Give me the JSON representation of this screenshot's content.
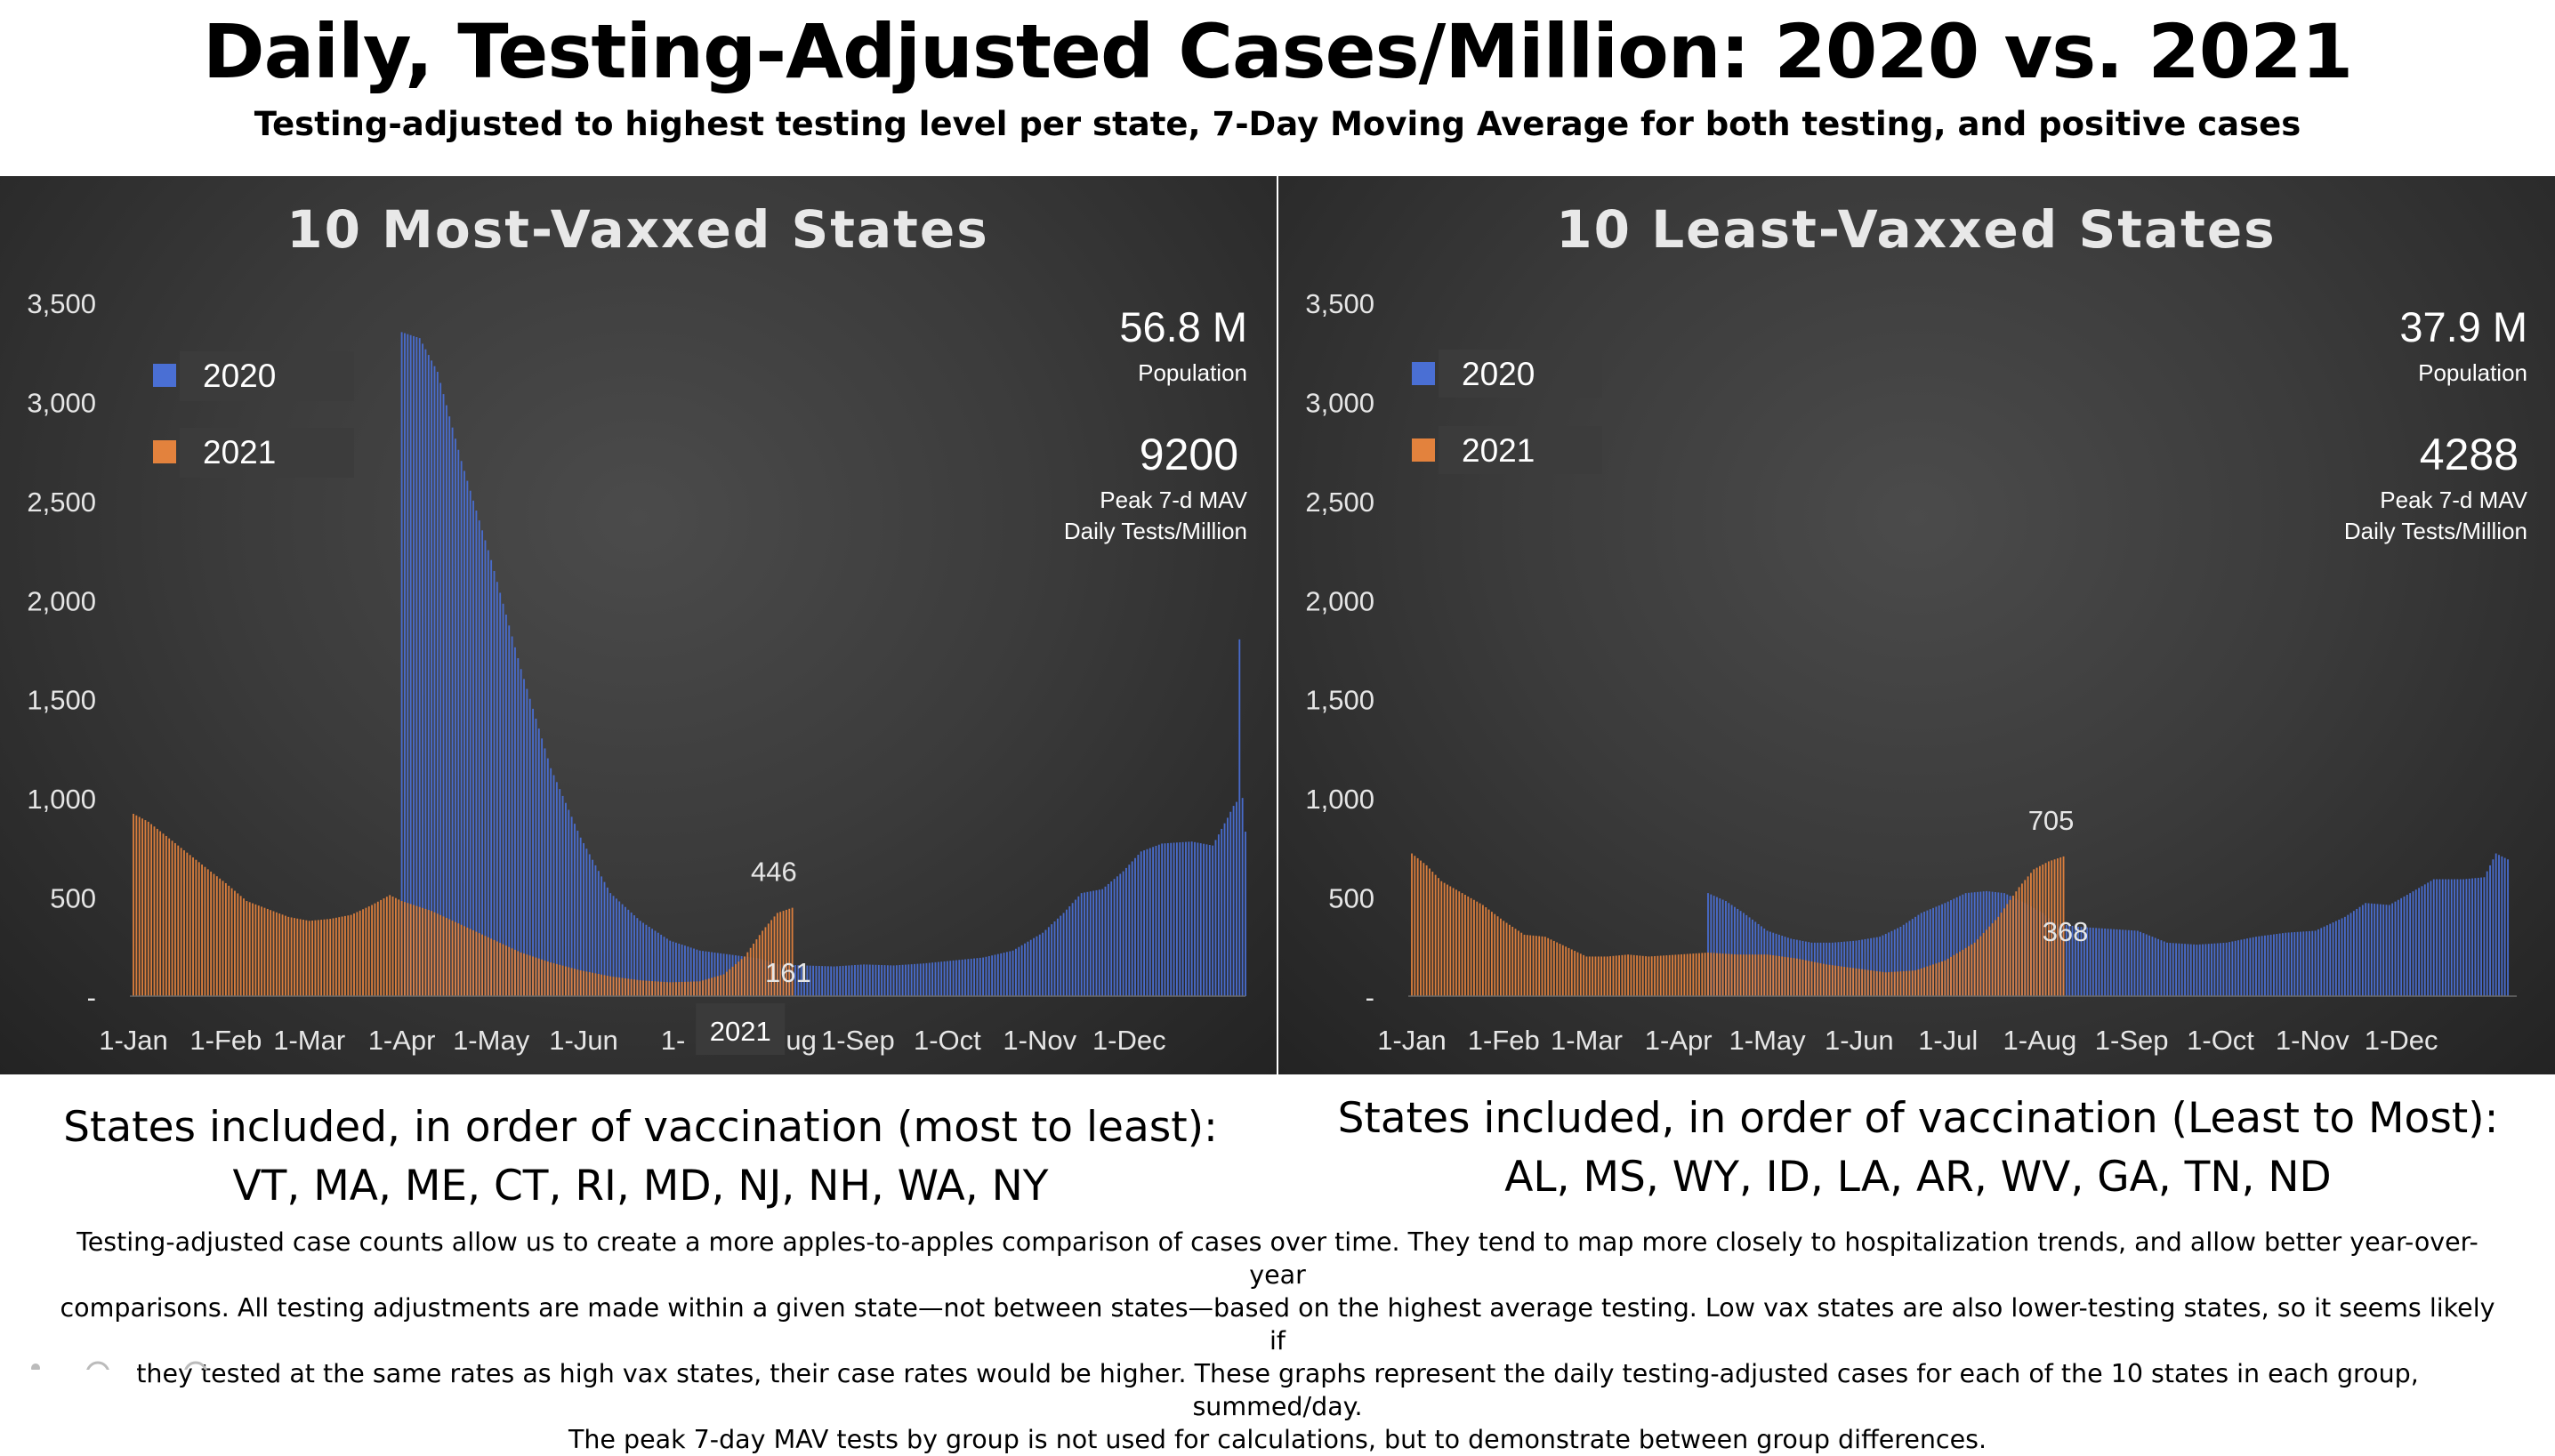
{
  "header": {
    "title": "Daily, Testing-Adjusted Cases/Million: 2020 vs. 2021",
    "subtitle": "Testing-adjusted to highest testing level per state, 7-Day Moving Average for both testing, and positive cases"
  },
  "colors": {
    "series_2020": "#4a6fd4",
    "series_2021": "#e3823d",
    "axis_text": "#e6e6e6"
  },
  "chart_data": [
    {
      "type": "bar",
      "title": "10 Most-Vaxxed States",
      "ylim": [
        0,
        3500
      ],
      "y_ticks": [
        "-",
        "500",
        "1,000",
        "1,500",
        "2,000",
        "2,500",
        "3,000",
        "3,500"
      ],
      "x_ticks": [
        "1-Jan",
        "1-Feb",
        "1-Mar",
        "1-Apr",
        "1-May",
        "1-Jun",
        "1-",
        "ug",
        "1-Sep",
        "1-Oct",
        "1-Nov",
        "1-Dec"
      ],
      "x_tick_days": [
        0,
        31,
        59,
        90,
        120,
        151,
        181,
        224,
        243,
        273,
        304,
        334
      ],
      "legend": [
        {
          "name": "2020",
          "color": "#4a6fd4"
        },
        {
          "name": "2021",
          "color": "#e3823d"
        }
      ],
      "legend_position": "top-left",
      "population_value": "56.8 M",
      "population_label": "Population",
      "peak_value": "9200",
      "peak_label_1": "Peak 7-d MAV",
      "peak_label_2": "Daily Tests/Million",
      "annotations": [
        {
          "text": "446",
          "day": 216,
          "value": 446,
          "series": "2021"
        },
        {
          "text": "161",
          "day": 216,
          "value": 161,
          "series": "2020"
        }
      ],
      "overlay_label": "2021",
      "series": [
        {
          "name": "2020",
          "start_day": 90,
          "end_day": 373,
          "points": [
            [
              90,
              3350
            ],
            [
              96,
              3320
            ],
            [
              102,
              3150
            ],
            [
              110,
              2700
            ],
            [
              120,
              2200
            ],
            [
              130,
              1650
            ],
            [
              140,
              1150
            ],
            [
              150,
              800
            ],
            [
              160,
              520
            ],
            [
              170,
              380
            ],
            [
              180,
              280
            ],
            [
              190,
              230
            ],
            [
              200,
              210
            ],
            [
              210,
              190
            ],
            [
              216,
              161
            ],
            [
              225,
              155
            ],
            [
              235,
              150
            ],
            [
              245,
              160
            ],
            [
              255,
              155
            ],
            [
              265,
              165
            ],
            [
              275,
              180
            ],
            [
              285,
              195
            ],
            [
              295,
              230
            ],
            [
              305,
              320
            ],
            [
              312,
              420
            ],
            [
              318,
              520
            ],
            [
              325,
              540
            ],
            [
              332,
              630
            ],
            [
              338,
              730
            ],
            [
              345,
              770
            ],
            [
              355,
              780
            ],
            [
              362,
              760
            ],
            [
              367,
              900
            ],
            [
              369,
              960
            ],
            [
              370,
              980
            ],
            [
              371,
              1800
            ],
            [
              372,
              1000
            ],
            [
              373,
              830
            ]
          ]
        },
        {
          "name": "2021",
          "start_day": 0,
          "end_day": 221,
          "points": [
            [
              0,
              920
            ],
            [
              5,
              880
            ],
            [
              10,
              820
            ],
            [
              15,
              760
            ],
            [
              20,
              700
            ],
            [
              25,
              640
            ],
            [
              31,
              570
            ],
            [
              38,
              480
            ],
            [
              45,
              440
            ],
            [
              52,
              400
            ],
            [
              59,
              380
            ],
            [
              66,
              390
            ],
            [
              73,
              410
            ],
            [
              80,
              460
            ],
            [
              86,
              510
            ],
            [
              90,
              480
            ],
            [
              100,
              430
            ],
            [
              110,
              360
            ],
            [
              120,
              290
            ],
            [
              130,
              220
            ],
            [
              140,
              170
            ],
            [
              150,
              130
            ],
            [
              160,
              100
            ],
            [
              170,
              80
            ],
            [
              180,
              70
            ],
            [
              190,
              75
            ],
            [
              198,
              110
            ],
            [
              205,
              200
            ],
            [
              211,
              330
            ],
            [
              216,
              420
            ],
            [
              221,
              446
            ]
          ]
        }
      ]
    },
    {
      "type": "bar",
      "title": "10 Least-Vaxxed States",
      "ylim": [
        0,
        3500
      ],
      "y_ticks": [
        "-",
        "500",
        "1,000",
        "1,500",
        "2,000",
        "2,500",
        "3,000",
        "3,500"
      ],
      "x_ticks": [
        "1-Jan",
        "1-Feb",
        "1-Mar",
        "1-Apr",
        "1-May",
        "1-Jun",
        "1-Jul",
        "1-Aug",
        "1-Sep",
        "1-Oct",
        "1-Nov",
        "1-Dec"
      ],
      "x_tick_days": [
        0,
        31,
        59,
        90,
        120,
        151,
        181,
        212,
        243,
        273,
        304,
        334
      ],
      "legend": [
        {
          "name": "2020",
          "color": "#4a6fd4"
        },
        {
          "name": "2021",
          "color": "#e3823d"
        }
      ],
      "legend_position": "top-left",
      "population_value": "37.9 M",
      "population_label": "Population",
      "peak_value": "4288",
      "peak_label_1": "Peak 7-d MAV",
      "peak_label_2": "Daily Tests/Million",
      "annotations": [
        {
          "text": "705",
          "day": 217,
          "value": 705,
          "series": "2021"
        },
        {
          "text": "368",
          "day": 217,
          "value": 368,
          "series": "2020"
        }
      ],
      "series": [
        {
          "name": "2020",
          "start_day": 100,
          "end_day": 370,
          "points": [
            [
              100,
              520
            ],
            [
              106,
              480
            ],
            [
              112,
              420
            ],
            [
              120,
              330
            ],
            [
              128,
              290
            ],
            [
              135,
              270
            ],
            [
              142,
              270
            ],
            [
              150,
              280
            ],
            [
              158,
              300
            ],
            [
              165,
              350
            ],
            [
              172,
              420
            ],
            [
              180,
              470
            ],
            [
              187,
              520
            ],
            [
              194,
              530
            ],
            [
              200,
              520
            ],
            [
              207,
              470
            ],
            [
              213,
              420
            ],
            [
              217,
              368
            ],
            [
              225,
              350
            ],
            [
              235,
              340
            ],
            [
              245,
              330
            ],
            [
              255,
              270
            ],
            [
              265,
              260
            ],
            [
              275,
              270
            ],
            [
              285,
              300
            ],
            [
              295,
              320
            ],
            [
              305,
              330
            ],
            [
              315,
              400
            ],
            [
              322,
              470
            ],
            [
              330,
              460
            ],
            [
              337,
              520
            ],
            [
              345,
              590
            ],
            [
              355,
              590
            ],
            [
              362,
              600
            ],
            [
              366,
              720
            ],
            [
              370,
              690
            ]
          ]
        },
        {
          "name": "2021",
          "start_day": 0,
          "end_day": 220,
          "points": [
            [
              0,
              720
            ],
            [
              5,
              660
            ],
            [
              10,
              580
            ],
            [
              17,
              520
            ],
            [
              24,
              460
            ],
            [
              31,
              380
            ],
            [
              38,
              310
            ],
            [
              45,
              300
            ],
            [
              52,
              250
            ],
            [
              59,
              200
            ],
            [
              66,
              200
            ],
            [
              73,
              210
            ],
            [
              80,
              200
            ],
            [
              90,
              210
            ],
            [
              100,
              220
            ],
            [
              110,
              210
            ],
            [
              120,
              210
            ],
            [
              130,
              190
            ],
            [
              140,
              160
            ],
            [
              150,
              140
            ],
            [
              160,
              120
            ],
            [
              170,
              130
            ],
            [
              180,
              180
            ],
            [
              190,
              270
            ],
            [
              198,
              400
            ],
            [
              205,
              550
            ],
            [
              210,
              640
            ],
            [
              215,
              680
            ],
            [
              220,
              705
            ]
          ]
        }
      ]
    }
  ],
  "captions": {
    "left_heading": "States included, in order of vaccination (most to least):",
    "left_states": "VT, MA, ME, CT, RI, MD, NJ, NH, WA, NY",
    "right_heading": "States included, in order of vaccination (Least to Most):",
    "right_states": "AL, MS, WY, ID, LA, AR, WV, GA, TN, ND"
  },
  "footnote": {
    "line1": "Testing-adjusted case counts allow us to create a more apples-to-apples comparison of cases over time. They tend to map more closely to hospitalization trends, and allow better year-over-year",
    "line2": "comparisons. All testing adjustments are made within a given state—not between states—based on the highest average testing. Low vax states are also lower-testing states, so it seems likely if",
    "line3": "they tested at the same rates as high vax states, their case rates would be higher. These graphs represent the daily testing-adjusted cases for each of the 10 states in each group, summed/day.",
    "line4": "The peak 7-day MAV tests by group is not used for calculations, but to demonstrate between group differences."
  }
}
